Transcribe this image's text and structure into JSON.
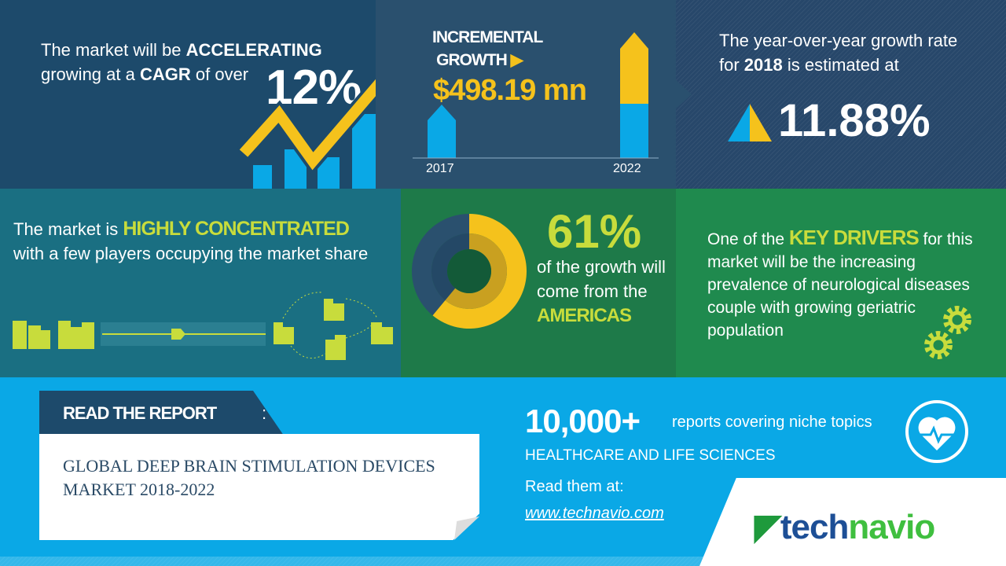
{
  "panel_cagr": {
    "line1_prefix": "The market will be ",
    "line1_bold": "ACCELERATING",
    "line2_prefix": "growing at a ",
    "line2_bold": "CAGR",
    "line2_suffix": " of over",
    "value": "12%"
  },
  "panel_incremental": {
    "title_line1": "INCREMENTAL",
    "title_line2": "GROWTH",
    "value": "$498.19 mn",
    "year_start": "2017",
    "year_end": "2022"
  },
  "panel_yoy": {
    "line1": "The year-over-year growth rate",
    "line2_prefix": "for ",
    "line2_bold": "2018",
    "line2_suffix": " is estimated at",
    "value": "11.88%"
  },
  "panel_concentration": {
    "prefix": "The market is ",
    "bold": "HIGHLY CONCENTRATED",
    "suffix": "with a few players occupying the market share"
  },
  "panel_region": {
    "value": "61%",
    "share": 0.61,
    "line1": "of the growth will",
    "line2": "come from the",
    "region": "AMERICAS"
  },
  "panel_drivers": {
    "prefix": "One of the ",
    "bold": "KEY DRIVERS",
    "suffix_first": " for",
    "body": "this market will be the increasing prevalence of neurological diseases couple with growing geriatric population"
  },
  "report": {
    "label": "READ THE REPORT",
    "colon": ":",
    "title_line1": "GLOBAL DEEP BRAIN STIMULATION DEVICES",
    "title_line2": "MARKET 2018-2022"
  },
  "promo": {
    "count": "10,000+",
    "count_text": "reports covering niche topics",
    "category": "HEALTHCARE AND LIFE SCIENCES",
    "read_at": "Read them at:",
    "url": "www.technavio.com",
    "icon": "heart-pulse-icon"
  },
  "logo": {
    "part1": "tech",
    "part2": "navio"
  },
  "colors": {
    "yellow": "#f5c21c",
    "blue": "#0aa8e6",
    "navy": "#1d4a6b",
    "green": "#1f8a4e",
    "lime": "#c8dc3c"
  }
}
